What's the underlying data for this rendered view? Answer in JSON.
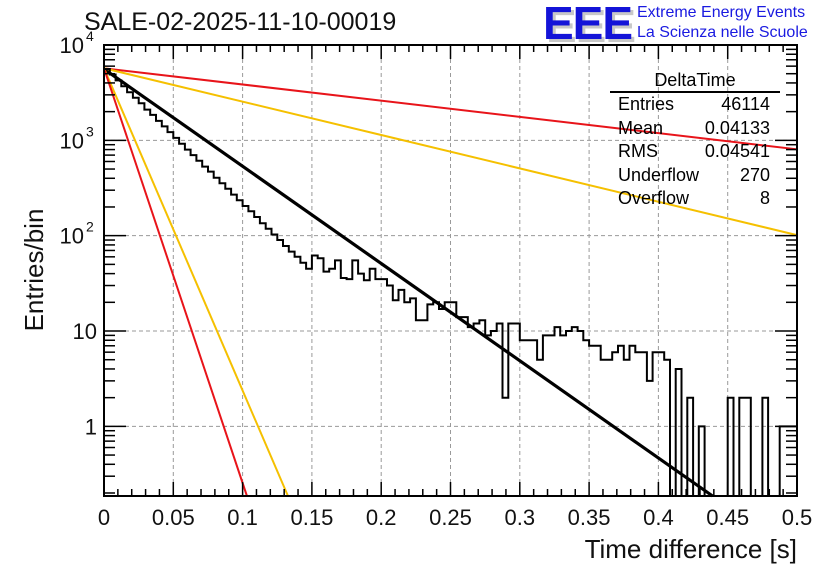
{
  "header": {
    "title": "SALE-02-2025-11-10-00019",
    "logo_mark": "EEE",
    "logo_line1": "Extreme Energy Events",
    "logo_line2": "La Scienza nelle Scuole"
  },
  "stats_box": {
    "name": "DeltaTime",
    "rows": [
      {
        "label": "Entries",
        "value": "46114"
      },
      {
        "label": "Mean",
        "value": "0.04133"
      },
      {
        "label": "RMS",
        "value": "0.04541"
      },
      {
        "label": "Underflow",
        "value": "270"
      },
      {
        "label": "Overflow",
        "value": "8"
      }
    ]
  },
  "colors": {
    "histogram": "#000000",
    "fit": "#000000",
    "bound_outer": "#e8141a",
    "bound_inner": "#f5c000",
    "grid": "#9a9a9a"
  },
  "chart_data": {
    "type": "histogram",
    "title": "SALE-02-2025-11-10-00019",
    "xlabel": "Time difference [s]",
    "ylabel": "Entries/bin",
    "xlim": [
      0,
      0.5
    ],
    "ylim": [
      0.186,
      10000
    ],
    "yscale": "log",
    "grid": true,
    "x_ticks": [
      "0",
      "0.05",
      "0.1",
      "0.15",
      "0.2",
      "0.25",
      "0.3",
      "0.35",
      "0.4",
      "0.45",
      "0.5"
    ],
    "x_tick_values": [
      0,
      0.05,
      0.1,
      0.15,
      0.2,
      0.25,
      0.3,
      0.35,
      0.4,
      0.45,
      0.5
    ],
    "y_ticks": [
      {
        "value": 1,
        "label": "1",
        "exp": ""
      },
      {
        "value": 10,
        "label": "10",
        "exp": ""
      },
      {
        "value": 100,
        "label": "10",
        "exp": "2"
      },
      {
        "value": 1000,
        "label": "10",
        "exp": "3"
      },
      {
        "value": 10000,
        "label": "10",
        "exp": "4"
      }
    ],
    "bin_width": 0.0041667,
    "bins": [
      5600,
      4900,
      4250,
      3700,
      3200,
      2800,
      2450,
      2100,
      1850,
      1600,
      1400,
      1220,
      1060,
      920,
      800,
      700,
      610,
      530,
      470,
      405,
      355,
      310,
      270,
      235,
      205,
      180,
      157,
      135,
      118,
      103,
      90,
      78,
      68,
      60,
      52,
      45,
      62,
      58,
      42,
      45,
      55,
      36,
      35,
      55,
      40,
      34,
      45,
      35,
      35,
      30,
      21,
      27,
      20,
      22,
      13,
      13,
      19,
      20,
      17,
      20,
      20,
      14,
      14,
      11,
      12,
      13,
      9,
      10,
      12,
      2,
      12,
      12,
      8,
      8,
      8,
      5,
      9,
      9,
      11,
      9,
      10,
      11,
      10,
      8,
      7,
      7,
      5,
      5,
      6,
      7,
      5,
      7,
      6,
      6,
      3,
      6,
      6,
      5,
      0.1,
      4,
      0.1,
      2,
      0.1,
      1,
      0.1,
      0.1,
      0.1,
      0.1,
      2,
      0.1,
      2,
      2,
      0.1,
      0.1,
      2,
      0.1,
      0.1,
      1,
      1,
      1
    ],
    "series": [
      {
        "name": "fit",
        "type": "exponential",
        "amplitude": 5600,
        "slope_decades_per_s": -10.2
      },
      {
        "name": "upper-bound-slow",
        "color": "outer",
        "amplitude": 5700,
        "slope_decades_per_s": -1.7
      },
      {
        "name": "upper-bound-inner",
        "color": "inner",
        "amplitude": 5700,
        "slope_decades_per_s": -3.5
      },
      {
        "name": "lower-bound-inner",
        "color": "inner",
        "amplitude": 5700,
        "slope_decades_per_s": -33.8
      },
      {
        "name": "lower-bound-fast",
        "color": "outer",
        "amplitude": 5700,
        "slope_decades_per_s": -43.5
      }
    ]
  }
}
